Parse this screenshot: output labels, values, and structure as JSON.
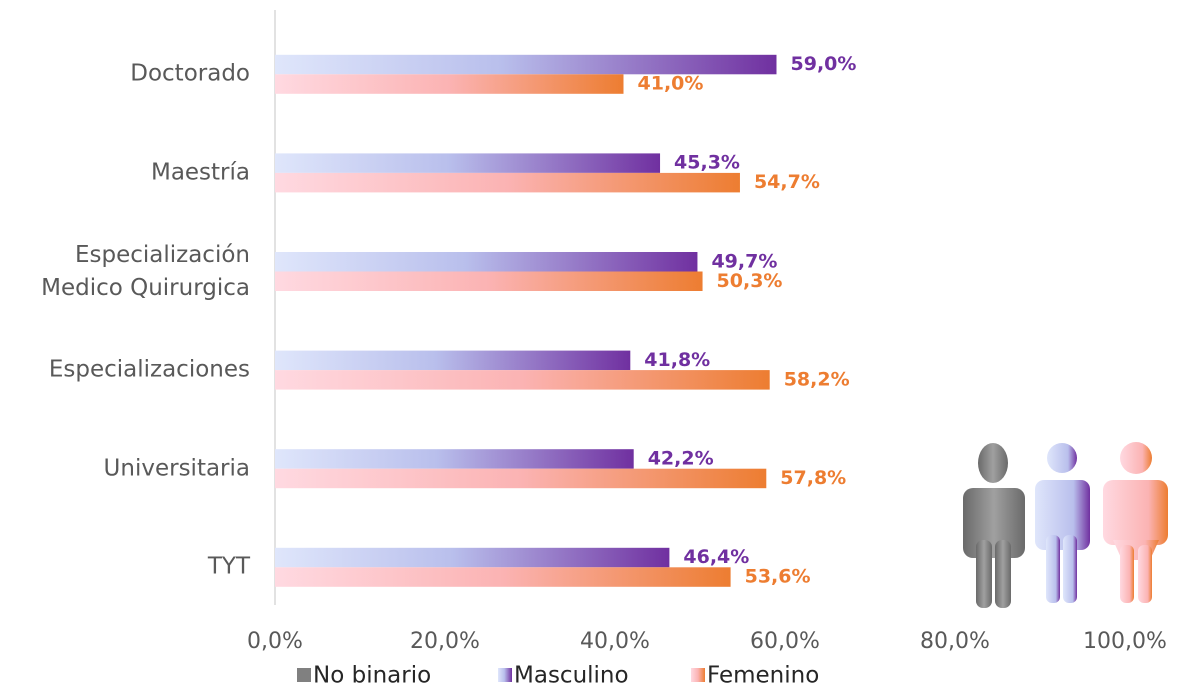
{
  "chart_data": {
    "type": "bar",
    "orientation": "horizontal",
    "categories": [
      "Doctorado",
      "Maestría ",
      "Especialización \nMedico Quirurgica",
      "Especializaciones",
      "Universitaria",
      "TYT"
    ],
    "series": [
      {
        "name": "No binario",
        "color": "#808080",
        "values": [
          0,
          0,
          0,
          0,
          0,
          0
        ]
      },
      {
        "name": "Masculino",
        "color": "#7030a0",
        "values": [
          59.0,
          45.3,
          49.7,
          41.8,
          42.2,
          46.4
        ],
        "value_labels": [
          "59,0%",
          "45,3%",
          "49,7%",
          "41,8%",
          "42,2%",
          "46,4%"
        ]
      },
      {
        "name": "Femenino",
        "color": "#ed7d31",
        "values": [
          41.0,
          54.7,
          50.3,
          58.2,
          57.8,
          53.6
        ],
        "value_labels": [
          "41,0%",
          "54,7%",
          "50,3%",
          "58,2%",
          "57,8%",
          "53,6%"
        ]
      }
    ],
    "xlim": [
      0,
      100
    ],
    "xticks": [
      {
        "value": 0,
        "label": "0,0%"
      },
      {
        "value": 20,
        "label": "20,0%"
      },
      {
        "value": 40,
        "label": "40,0%"
      },
      {
        "value": 60,
        "label": "60,0%"
      },
      {
        "value": 80,
        "label": "80,0%"
      },
      {
        "value": 100,
        "label": "100,0%"
      }
    ],
    "legend": "bottom"
  }
}
